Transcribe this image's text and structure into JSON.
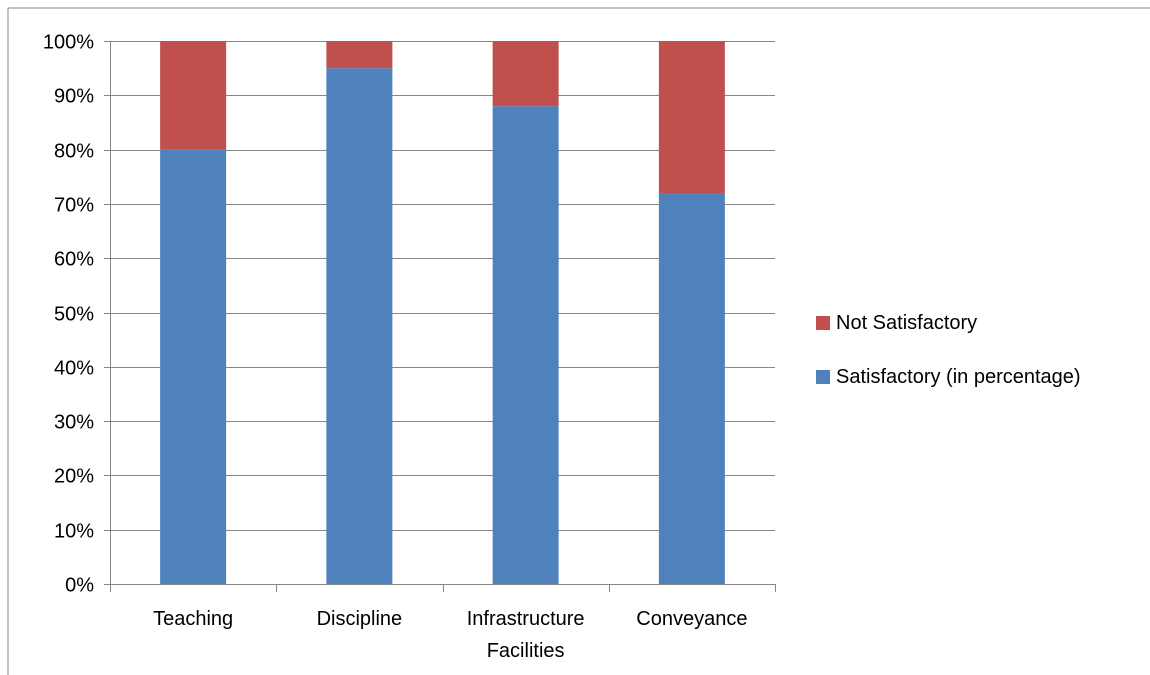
{
  "chart_data": {
    "type": "bar",
    "stacked": true,
    "percent_stacked": true,
    "title": "",
    "xlabel": "",
    "ylabel": "",
    "categories": [
      "Teaching",
      "Discipline",
      "Infrastructure Facilities",
      "Conveyance"
    ],
    "category_lines": [
      [
        "Teaching"
      ],
      [
        "Discipline"
      ],
      [
        "Infrastructure",
        "Facilities"
      ],
      [
        "Conveyance"
      ]
    ],
    "series": [
      {
        "name": "Satisfactory (in percentage)",
        "values": [
          80,
          95,
          88,
          72
        ],
        "color": "#4f81bd"
      },
      {
        "name": "Not Satisfactory",
        "values": [
          20,
          5,
          12,
          28
        ],
        "color": "#c0504d"
      }
    ],
    "ylim": [
      0,
      100
    ],
    "yticks": [
      0,
      10,
      20,
      30,
      40,
      50,
      60,
      70,
      80,
      90,
      100
    ],
    "ytick_labels": [
      "0%",
      "10%",
      "20%",
      "30%",
      "40%",
      "50%",
      "60%",
      "70%",
      "80%",
      "90%",
      "100%"
    ],
    "grid": true,
    "legend_position": "right",
    "legend_order": [
      "Not Satisfactory",
      "Satisfactory (in percentage)"
    ]
  }
}
